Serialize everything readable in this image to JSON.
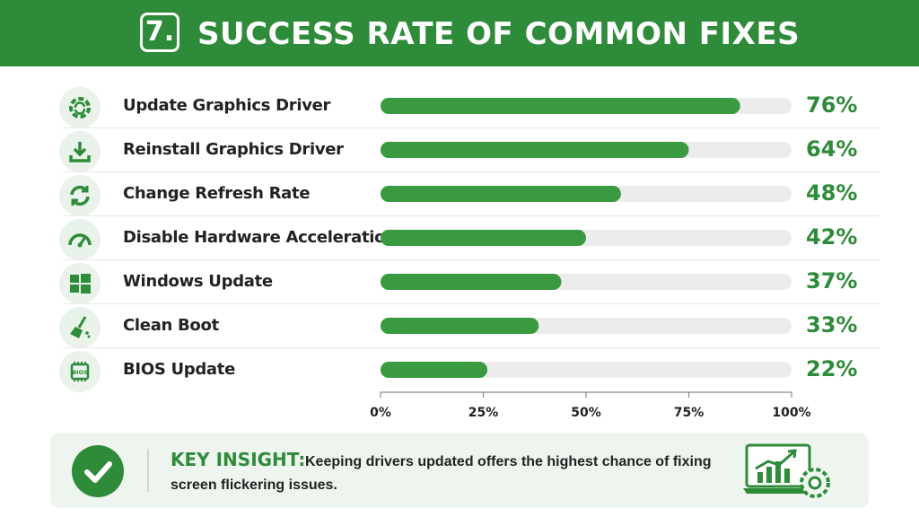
{
  "header": {
    "number": "7.",
    "title": "SUCCESS RATE OF COMMON FIXES"
  },
  "colors": {
    "brand": "#2e8b3a",
    "bar": "#3a9a3f",
    "track": "#ececec",
    "icon_bg": "#eaf3ea"
  },
  "rows": [
    {
      "label": "Update Graphics Driver",
      "pct_text": "76%",
      "icon": "gear-refresh-icon"
    },
    {
      "label": "Reinstall Graphics Driver",
      "pct_text": "64%",
      "icon": "download-icon"
    },
    {
      "label": "Change Refresh Rate",
      "pct_text": "48%",
      "icon": "refresh-icon"
    },
    {
      "label": "Disable Hardware Acceleration",
      "pct_text": "42%",
      "icon": "speedometer-icon"
    },
    {
      "label": "Windows Update",
      "pct_text": "37%",
      "icon": "windows-logo-icon"
    },
    {
      "label": "Clean Boot",
      "pct_text": "33%",
      "icon": "broom-icon"
    },
    {
      "label": "BIOS Update",
      "pct_text": "22%",
      "icon": "bios-chip-icon"
    }
  ],
  "chart_data": {
    "type": "bar",
    "orientation": "horizontal",
    "categories": [
      "Update Graphics Driver",
      "Reinstall Graphics Driver",
      "Change Refresh Rate",
      "Disable Hardware Acceleration",
      "Windows Update",
      "Clean Boot",
      "BIOS Update"
    ],
    "values": [
      76,
      64,
      48,
      42,
      37,
      33,
      22
    ],
    "bar_fill_fraction": [
      0.875,
      0.75,
      0.585,
      0.5,
      0.44,
      0.385,
      0.26
    ],
    "xlim": [
      0,
      100
    ],
    "xticks": [
      "0%",
      "25%",
      "50%",
      "75%",
      "100%"
    ],
    "title": "SUCCESS RATE OF COMMON FIXES",
    "grid": false
  },
  "insight": {
    "title": "KEY INSIGHT:",
    "text": "Keeping drivers updated offers the highest chance of fixing screen flickering issues.",
    "icon": "check-icon",
    "illustration": "laptop-chart-gear-icon",
    "bios_chip_text": "BIOS"
  }
}
